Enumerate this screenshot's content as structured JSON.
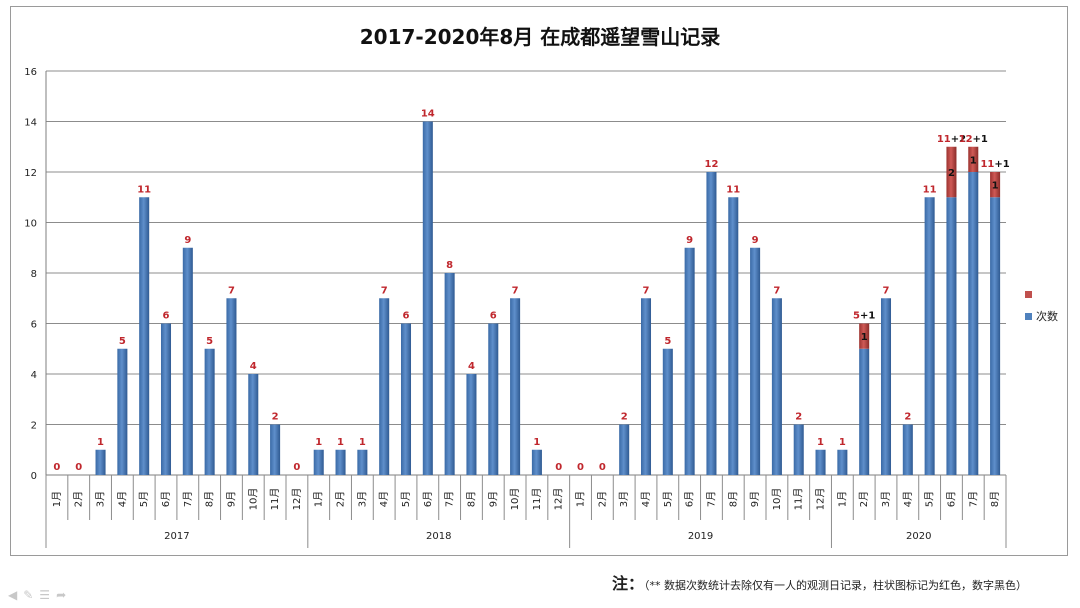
{
  "note": {
    "head": "注：",
    "body": "（** 数据次数统计去除仅有一人的观测日记录，柱状图标记为红色，数字黑色）"
  },
  "chart_data": {
    "type": "bar",
    "stacked": true,
    "title": "2017-2020年8月 在成都遥望雪山记录",
    "ylim": [
      0,
      16
    ],
    "yticks": [
      0,
      2,
      4,
      6,
      8,
      10,
      12,
      14,
      16
    ],
    "grid": true,
    "legend_position": "right",
    "groups": [
      {
        "label": "2017",
        "months": [
          "1月",
          "2月",
          "3月",
          "4月",
          "5月",
          "6月",
          "7月",
          "8月",
          "9月",
          "10月",
          "11月",
          "12月"
        ]
      },
      {
        "label": "2018",
        "months": [
          "1月",
          "2月",
          "3月",
          "4月",
          "5月",
          "6月",
          "7月",
          "8月",
          "9月",
          "10月",
          "11月",
          "12月"
        ]
      },
      {
        "label": "2019",
        "months": [
          "1月",
          "2月",
          "3月",
          "4月",
          "5月",
          "6月",
          "7月",
          "8月",
          "9月",
          "10月",
          "11月",
          "12月"
        ]
      },
      {
        "label": "2020",
        "months": [
          "1月",
          "2月",
          "3月",
          "4月",
          "5月",
          "6月",
          "7月",
          "8月"
        ]
      }
    ],
    "series": [
      {
        "name": "次数",
        "color": "#4f81bd",
        "values": [
          0,
          0,
          1,
          5,
          11,
          6,
          9,
          5,
          7,
          4,
          2,
          0,
          1,
          1,
          1,
          7,
          6,
          14,
          8,
          4,
          6,
          7,
          1,
          0,
          0,
          0,
          2,
          7,
          5,
          9,
          12,
          11,
          9,
          7,
          2,
          1,
          1,
          5,
          7,
          2,
          11,
          11,
          12,
          11
        ]
      },
      {
        "name": "",
        "color": "#c0504d",
        "values": [
          0,
          0,
          0,
          0,
          0,
          0,
          0,
          0,
          0,
          0,
          0,
          0,
          0,
          0,
          0,
          0,
          0,
          0,
          0,
          0,
          0,
          0,
          0,
          0,
          0,
          0,
          0,
          0,
          0,
          0,
          0,
          0,
          0,
          0,
          0,
          0,
          0,
          1,
          0,
          0,
          0,
          2,
          1,
          1
        ]
      }
    ],
    "data_labels": [
      {
        "index": 0,
        "text": "0"
      },
      {
        "index": 1,
        "text": "0"
      },
      {
        "index": 2,
        "text": "1"
      },
      {
        "index": 3,
        "text": "5"
      },
      {
        "index": 4,
        "text": "11"
      },
      {
        "index": 5,
        "text": "6"
      },
      {
        "index": 6,
        "text": "9"
      },
      {
        "index": 7,
        "text": "5"
      },
      {
        "index": 8,
        "text": "7"
      },
      {
        "index": 9,
        "text": "4"
      },
      {
        "index": 10,
        "text": "2"
      },
      {
        "index": 11,
        "text": "0"
      },
      {
        "index": 12,
        "text": "1"
      },
      {
        "index": 13,
        "text": "1"
      },
      {
        "index": 14,
        "text": "1"
      },
      {
        "index": 15,
        "text": "7"
      },
      {
        "index": 16,
        "text": "6"
      },
      {
        "index": 17,
        "text": "14"
      },
      {
        "index": 18,
        "text": "8"
      },
      {
        "index": 19,
        "text": "4"
      },
      {
        "index": 20,
        "text": "6"
      },
      {
        "index": 21,
        "text": "7"
      },
      {
        "index": 22,
        "text": "1"
      },
      {
        "index": 23,
        "text": "0"
      },
      {
        "index": 24,
        "text": "0"
      },
      {
        "index": 25,
        "text": "0"
      },
      {
        "index": 26,
        "text": "2"
      },
      {
        "index": 27,
        "text": "7"
      },
      {
        "index": 28,
        "text": "5"
      },
      {
        "index": 29,
        "text": "9"
      },
      {
        "index": 30,
        "text": "12"
      },
      {
        "index": 31,
        "text": "11"
      },
      {
        "index": 32,
        "text": "9"
      },
      {
        "index": 33,
        "text": "7"
      },
      {
        "index": 34,
        "text": "2"
      },
      {
        "index": 35,
        "text": "1"
      },
      {
        "index": 36,
        "text": "1"
      },
      {
        "index": 37,
        "text": "5",
        "extra": "+1"
      },
      {
        "index": 38,
        "text": "7"
      },
      {
        "index": 39,
        "text": "2"
      },
      {
        "index": 40,
        "text": "11"
      },
      {
        "index": 41,
        "text": "11",
        "extra": "+2"
      },
      {
        "index": 42,
        "text": "12",
        "extra": "+1"
      },
      {
        "index": 43,
        "text": "11",
        "extra": "+1"
      }
    ],
    "segment_labels": [
      {
        "index": 37,
        "text": "1"
      },
      {
        "index": 41,
        "text": "2"
      },
      {
        "index": 42,
        "text": "1"
      },
      {
        "index": 43,
        "text": "1"
      }
    ],
    "legend": [
      {
        "name": "",
        "color": "#c0504d"
      },
      {
        "name": "次数",
        "color": "#4f81bd"
      }
    ]
  }
}
